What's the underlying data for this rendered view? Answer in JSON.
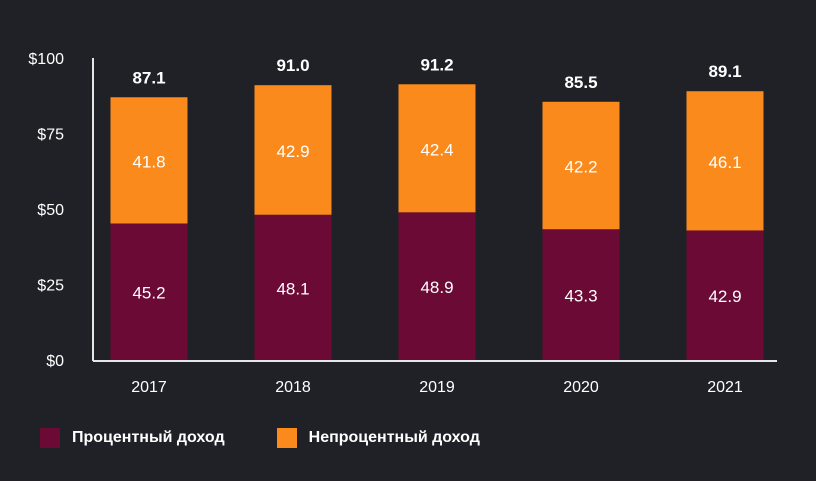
{
  "chart_data": {
    "type": "bar",
    "stacked": true,
    "title": "",
    "xlabel": "",
    "ylabel": "",
    "categories": [
      "2017",
      "2018",
      "2019",
      "2020",
      "2021"
    ],
    "ylim": [
      0,
      100
    ],
    "yticks": [
      0,
      25,
      50,
      75,
      100
    ],
    "ytick_labels": [
      "$0",
      "$25",
      "$50",
      "$75",
      "$100"
    ],
    "totals": [
      "87.1",
      "91.0",
      "91.2",
      "85.5",
      "89.1"
    ],
    "series": [
      {
        "name": "Процентный доход",
        "color": "#6a0a35",
        "values": [
          45.2,
          48.1,
          48.9,
          43.3,
          42.9
        ],
        "labels": [
          "45.2",
          "48.1",
          "48.9",
          "43.3",
          "42.9"
        ]
      },
      {
        "name": "Непроцентный доход",
        "color": "#fb8a1c",
        "values": [
          41.8,
          42.9,
          42.4,
          42.2,
          46.1
        ],
        "labels": [
          "41.8",
          "42.9",
          "42.4",
          "42.2",
          "46.1"
        ]
      }
    ],
    "legend_position": "bottom-left"
  }
}
